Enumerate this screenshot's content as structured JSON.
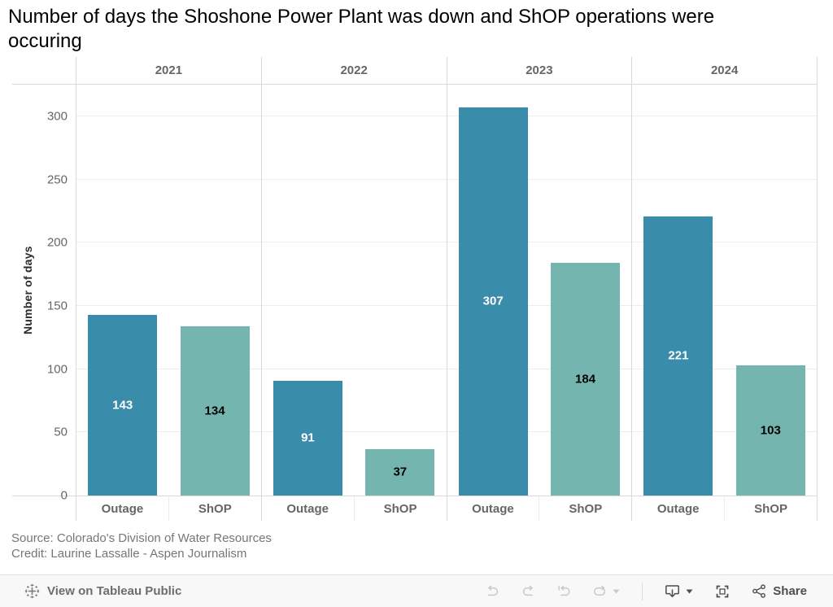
{
  "title_line1": "Number of days the Shoshone Power Plant was down and ShOP operations were",
  "title_line2": "occuring",
  "chart_data": {
    "type": "bar",
    "title": "Number of days the Shoshone Power Plant was down and ShOP operations were occuring",
    "xlabel": "",
    "ylabel": "Number of days",
    "ylim": [
      0,
      325
    ],
    "yticks": [
      0,
      50,
      100,
      150,
      200,
      250,
      300
    ],
    "grid": true,
    "legend_position": "none",
    "categories": [
      "2021",
      "2022",
      "2023",
      "2024"
    ],
    "bar_group_labels": [
      "Outage",
      "ShOP"
    ],
    "series": [
      {
        "name": "Outage",
        "values": [
          143,
          91,
          307,
          221
        ],
        "color": "#3a8cab",
        "value_label_color": "#ffffff"
      },
      {
        "name": "ShOP",
        "values": [
          134,
          37,
          184,
          103
        ],
        "color": "#74b6af",
        "value_label_color": "#000000"
      }
    ]
  },
  "caption": {
    "source": "Source: Colorado's Division of Water Resources",
    "credit": "Credit: Laurine Lassalle - Aspen Journalism"
  },
  "toolbar": {
    "view_label": "View on Tableau Public",
    "share_label": "Share",
    "icons": [
      "tableau-logo",
      "undo",
      "redo",
      "replay",
      "refresh",
      "caret-down",
      "download-device",
      "caret-down",
      "fullscreen",
      "share-nodes"
    ]
  },
  "colors": {
    "outage_bar": "#3a8cab",
    "shop_bar": "#74b6af",
    "gridline": "#ececec",
    "pane_border": "#d9d9d9",
    "axis_text": "#666666",
    "toolbar_bg": "#f8f8f8",
    "toolbar_icon_active": "#4d4d4d",
    "toolbar_icon_disabled": "#c9c9c9"
  }
}
